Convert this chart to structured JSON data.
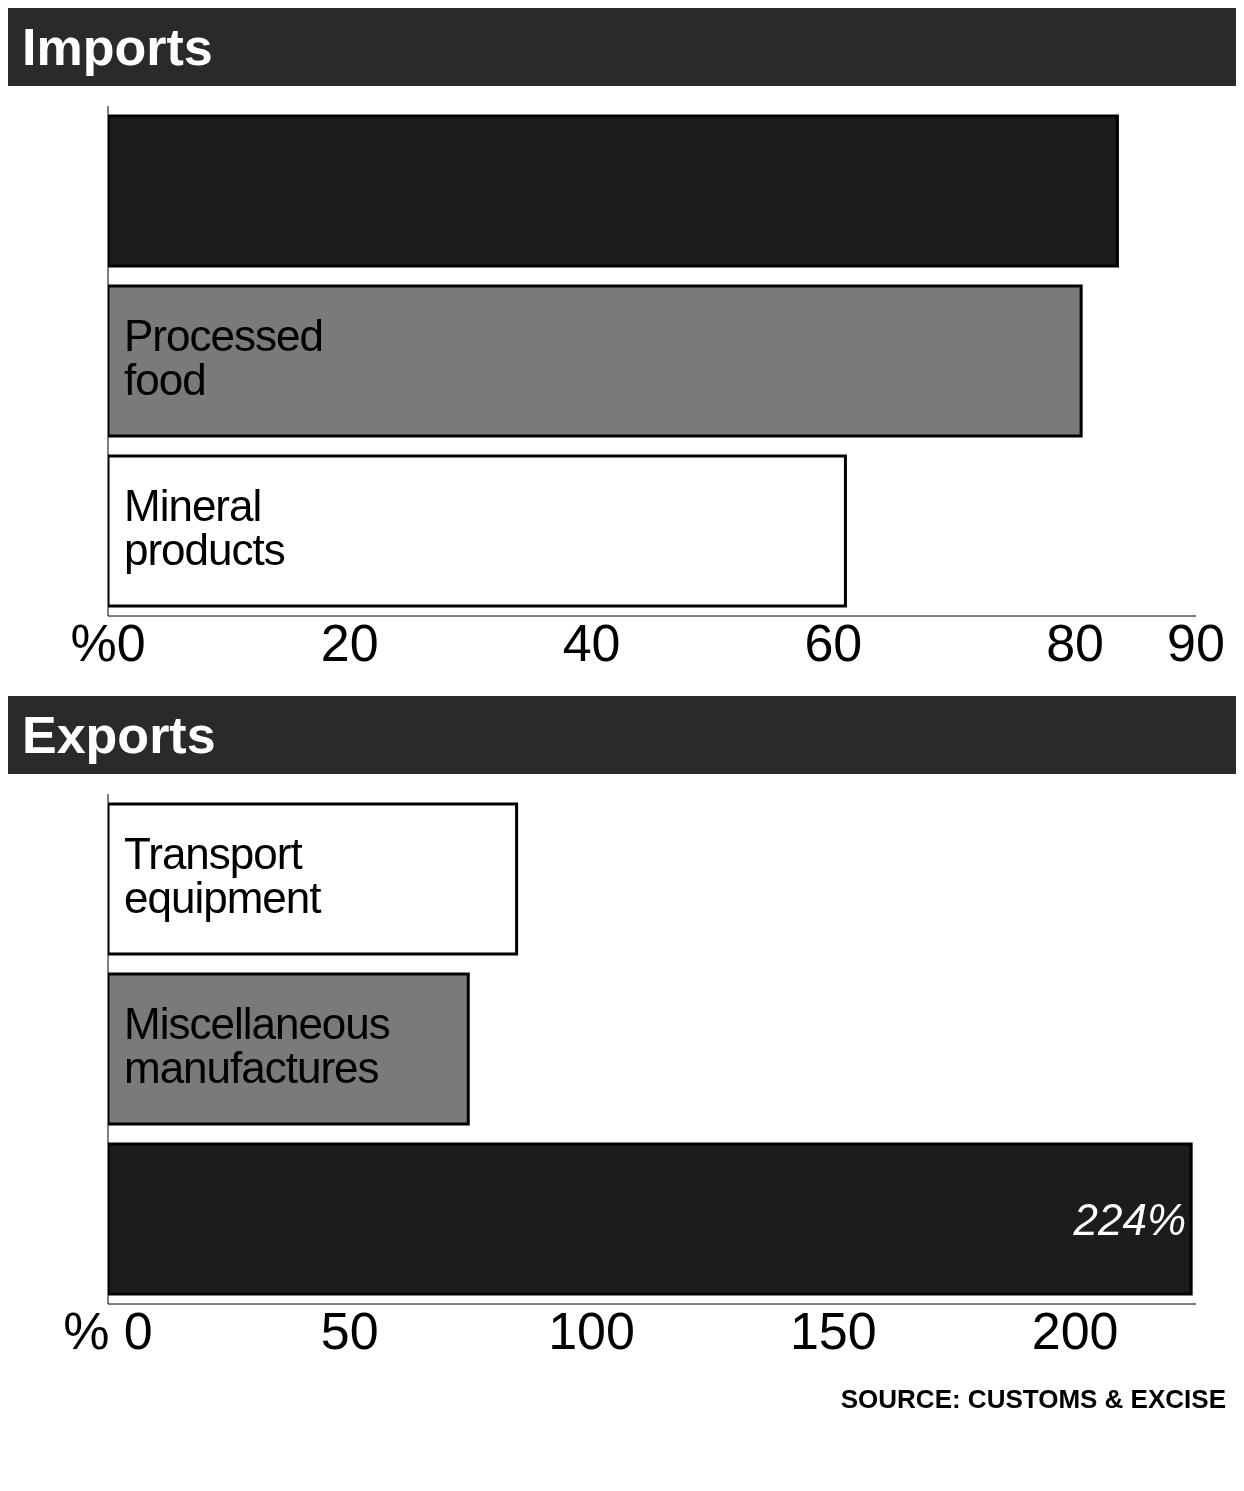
{
  "chart_data": [
    {
      "type": "bar",
      "orientation": "horizontal",
      "title": "Imports",
      "categories": [
        null,
        "Processed food",
        "Mineral products"
      ],
      "values": [
        83.5,
        80.5,
        61
      ],
      "colors": [
        "#1c1c1c",
        "#7a7a7a",
        "#ffffff"
      ],
      "xlim": [
        0,
        90
      ],
      "xticks": [
        {
          "value": 0,
          "label": "%0"
        },
        20,
        40,
        60,
        80,
        90
      ]
    },
    {
      "type": "bar",
      "orientation": "horizontal",
      "title": "Exports",
      "categories": [
        "Transport equipment",
        "Miscellaneous manufactures",
        null
      ],
      "values": [
        84.5,
        74.5,
        224
      ],
      "colors": [
        "#ffffff",
        "#7a7a7a",
        "#1c1c1c"
      ],
      "value_labels": [
        null,
        null,
        "224%"
      ],
      "xlim": [
        0,
        225
      ],
      "xticks": [
        {
          "value": 0,
          "label": "% 0"
        },
        50,
        100,
        150,
        200
      ],
      "annotations": [
        "SOURCE: CUSTOMS & EXCISE"
      ]
    }
  ]
}
